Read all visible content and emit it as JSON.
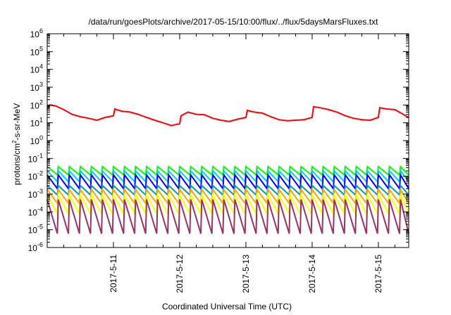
{
  "chart_data": {
    "type": "line",
    "title": "/data/run/goesPlots/archive/2017-05-15/10:00/flux/../flux/5daysMarsFluxes.txt",
    "xlabel": "Coordinated Universal Time (UTC)",
    "ylabel": "protons/cm2-s-sr-MeV",
    "ylabel_parts": {
      "base": "protons/cm",
      "sup": "2",
      "rest": "-s-sr-MeV"
    },
    "xrange_days": [
      "2017-05-10 00:00",
      "2017-05-15 11:00"
    ],
    "x_tick_labels": [
      "2017-5-11",
      "2017-5-12",
      "2017-5-13",
      "2017-5-14",
      "2017-5-15"
    ],
    "y_scale": "log",
    "ylim": [
      1e-06,
      1000000.0
    ],
    "y_tick_labels": [
      {
        "base": "10",
        "exp": "-6"
      },
      {
        "base": "10",
        "exp": "-5"
      },
      {
        "base": "10",
        "exp": "-4"
      },
      {
        "base": "10",
        "exp": "-3"
      },
      {
        "base": "10",
        "exp": "-2"
      },
      {
        "base": "10",
        "exp": "-1"
      },
      {
        "base": "10",
        "exp": "0"
      },
      {
        "base": "10",
        "exp": "1"
      },
      {
        "base": "10",
        "exp": "2"
      },
      {
        "base": "10",
        "exp": "3"
      },
      {
        "base": "10",
        "exp": "4"
      },
      {
        "base": "10",
        "exp": "5"
      },
      {
        "base": "10",
        "exp": "6"
      }
    ],
    "grid": false,
    "legend": "none",
    "series": [
      {
        "color": "#ff0000",
        "x": [
          "2017-05-10 00:00",
          "2017-05-10 01:00",
          "2017-05-10 03:00",
          "2017-05-10 06:00",
          "2017-05-10 09:00",
          "2017-05-10 12:00",
          "2017-05-10 15:00",
          "2017-05-10 18:00",
          "2017-05-10 21:00",
          "2017-05-11 00:00",
          "2017-05-11 00:30",
          "2017-05-11 03:00",
          "2017-05-11 06:00",
          "2017-05-11 09:00",
          "2017-05-11 12:00",
          "2017-05-11 15:00",
          "2017-05-11 18:00",
          "2017-05-11 21:00",
          "2017-05-12 00:00",
          "2017-05-12 00:30",
          "2017-05-12 03:00",
          "2017-05-12 06:00",
          "2017-05-12 09:00",
          "2017-05-12 12:00",
          "2017-05-12 15:00",
          "2017-05-12 18:00",
          "2017-05-12 21:00",
          "2017-05-13 00:00",
          "2017-05-13 00:30",
          "2017-05-13 03:00",
          "2017-05-13 06:00",
          "2017-05-13 09:00",
          "2017-05-13 12:00",
          "2017-05-13 15:00",
          "2017-05-13 18:00",
          "2017-05-13 21:00",
          "2017-05-14 00:00",
          "2017-05-14 00:30",
          "2017-05-14 03:00",
          "2017-05-14 06:00",
          "2017-05-14 09:00",
          "2017-05-14 12:00",
          "2017-05-14 15:00",
          "2017-05-14 18:00",
          "2017-05-14 21:00",
          "2017-05-15 00:00",
          "2017-05-15 00:30",
          "2017-05-15 03:00",
          "2017-05-15 06:00",
          "2017-05-15 09:00",
          "2017-05-15 11:00"
        ],
        "y": [
          60,
          100,
          90,
          55,
          30,
          22,
          18,
          14,
          20,
          25,
          60,
          45,
          40,
          30,
          20,
          14,
          10,
          7,
          9,
          25,
          40,
          30,
          28,
          18,
          14,
          12,
          16,
          20,
          50,
          40,
          35,
          22,
          15,
          13,
          14,
          15,
          20,
          80,
          70,
          55,
          40,
          25,
          18,
          15,
          14,
          20,
          70,
          60,
          55,
          30,
          20
        ]
      },
      {
        "color": "#00ff00",
        "y_peak": 0.035,
        "y_trough": 0.012,
        "spikes_per_day": 6
      },
      {
        "color": "#00ccff",
        "y_peak": 0.02,
        "y_trough": 0.005,
        "spikes_per_day": 6
      },
      {
        "color": "#0000ff",
        "y_peak": 0.012,
        "y_trough": 0.002,
        "spikes_per_day": 6
      },
      {
        "color": "#00a0a0",
        "y_peak": 0.003,
        "y_trough": 0.0009,
        "spikes_per_day": 6
      },
      {
        "color": "#ffa500",
        "y_peak": 0.0018,
        "y_trough": 0.0003,
        "spikes_per_day": 6
      },
      {
        "color": "#ffff00",
        "y_peak": 0.0009,
        "y_trough": 8e-05,
        "spikes_per_day": 6
      },
      {
        "color": "#993366",
        "y_peak": 0.0005,
        "y_trough": 6e-06,
        "spikes_per_day": 6
      }
    ]
  }
}
